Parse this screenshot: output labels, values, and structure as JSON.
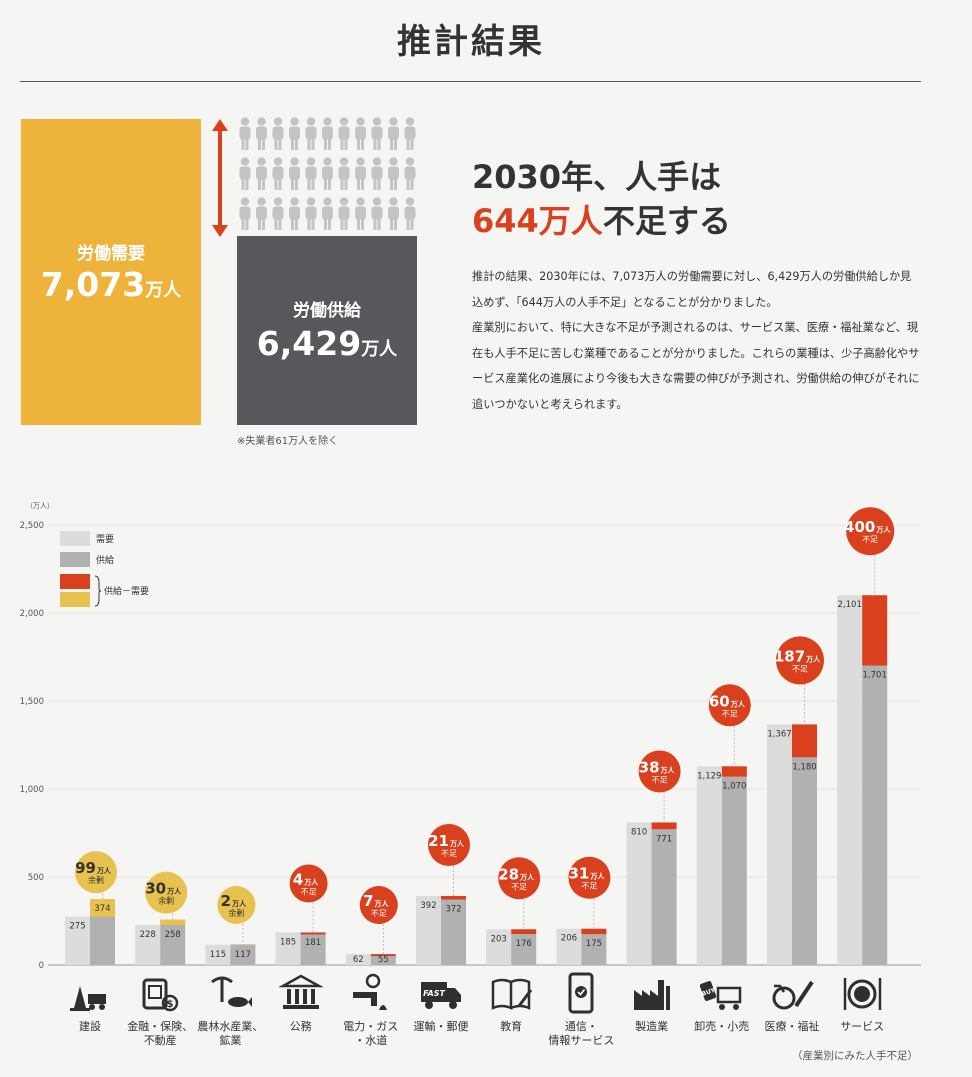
{
  "title": "推計結果",
  "summary": {
    "demand_label": "労働需要",
    "demand_value": "7,073",
    "supply_label": "労働供給",
    "supply_value": "6,429",
    "unit": "万人",
    "note": "※失業者61万人を除く",
    "headline_line1": "2030年、人手は",
    "headline_shortage": "644万人",
    "headline_suffix": "不足する",
    "body": "推計の結果、2030年には、7,073万人の労働需要に対し、6,429万人の労働供給しか見込めず、「644万人の人手不足」となることが分かりました。\n産業別において、特に大きな不足が予測されるのは、サービス業、医療・福祉業など、現在も人手不足に苦しむ業種であることが分かりました。これらの業種は、少子高齢化やサービス産業化の進展により今後も大きな需要の伸びが予測され、労働供給の伸びがそれに追いつかないと考えられます。"
  },
  "colors": {
    "demand_box": "#eeb33b",
    "supply_box": "#58575b",
    "shortage": "#d9401e",
    "surplus": "#e7c24f",
    "demand_bar": "#dcdcdc",
    "supply_bar": "#b1b1b1"
  },
  "chart_data": {
    "type": "bar",
    "ylabel": "（万人）",
    "ylim": [
      0,
      2500
    ],
    "yticks": [
      "0",
      "500",
      "1,000",
      "1,500",
      "2,000",
      "2,500"
    ],
    "legend": {
      "demand": "需要",
      "supply": "供給",
      "diff": "供給－需要"
    },
    "footnote": "（産業別にみた人手不足）",
    "categories": [
      {
        "name": "建設",
        "icon": "construction-icon",
        "demand": 275,
        "supply": 374,
        "demand_label": "275",
        "supply_label": "374",
        "badge_num": "99",
        "badge_unit": "万人",
        "badge_word": "余剰",
        "type": "surplus"
      },
      {
        "name": "金融・保険、\n不動産",
        "icon": "finance-icon",
        "demand": 228,
        "supply": 258,
        "demand_label": "228",
        "supply_label": "258",
        "badge_num": "30",
        "badge_unit": "万人",
        "badge_word": "余剰",
        "type": "surplus"
      },
      {
        "name": "農林水産業、\n鉱業",
        "icon": "agriculture-icon",
        "demand": 115,
        "supply": 117,
        "demand_label": "115",
        "supply_label": "117",
        "badge_num": "2",
        "badge_unit": "万人",
        "badge_word": "余剰",
        "type": "surplus"
      },
      {
        "name": "公務",
        "icon": "government-icon",
        "demand": 185,
        "supply": 181,
        "demand_label": "185",
        "supply_label": "181",
        "badge_num": "4",
        "badge_unit": "万人",
        "badge_word": "不足",
        "type": "shortage"
      },
      {
        "name": "電力・ガス\n・水道",
        "icon": "utilities-icon",
        "demand": 62,
        "supply": 55,
        "demand_label": "62",
        "supply_label": "55",
        "badge_num": "7",
        "badge_unit": "万人",
        "badge_word": "不足",
        "type": "shortage"
      },
      {
        "name": "運輸・郵便",
        "icon": "transport-icon",
        "demand": 392,
        "supply": 372,
        "demand_label": "392",
        "supply_label": "372",
        "badge_num": "21",
        "badge_unit": "万人",
        "badge_word": "不足",
        "type": "shortage"
      },
      {
        "name": "教育",
        "icon": "education-icon",
        "demand": 203,
        "supply": 176,
        "demand_label": "203",
        "supply_label": "176",
        "badge_num": "28",
        "badge_unit": "万人",
        "badge_word": "不足",
        "type": "shortage"
      },
      {
        "name": "通信・\n情報サービス",
        "icon": "smartphone-icon",
        "demand": 206,
        "supply": 175,
        "demand_label": "206",
        "supply_label": "175",
        "badge_num": "31",
        "badge_unit": "万人",
        "badge_word": "不足",
        "type": "shortage"
      },
      {
        "name": "製造業",
        "icon": "factory-icon",
        "demand": 810,
        "supply": 771,
        "demand_label": "810",
        "supply_label": "771",
        "badge_num": "38",
        "badge_unit": "万人",
        "badge_word": "不足",
        "type": "shortage"
      },
      {
        "name": "卸売・小売",
        "icon": "retail-icon",
        "demand": 1129,
        "supply": 1070,
        "demand_label": "1,129",
        "supply_label": "1,070",
        "badge_num": "60",
        "badge_unit": "万人",
        "badge_word": "不足",
        "type": "shortage"
      },
      {
        "name": "医療・福祉",
        "icon": "medical-icon",
        "demand": 1367,
        "supply": 1180,
        "demand_label": "1,367",
        "supply_label": "1,180",
        "badge_num": "187",
        "badge_unit": "万人",
        "badge_word": "不足",
        "type": "shortage"
      },
      {
        "name": "サービス",
        "icon": "service-icon",
        "demand": 2101,
        "supply": 1701,
        "demand_label": "2,101",
        "supply_label": "1,701",
        "badge_num": "400",
        "badge_unit": "万人",
        "badge_word": "不足",
        "type": "shortage"
      }
    ]
  }
}
